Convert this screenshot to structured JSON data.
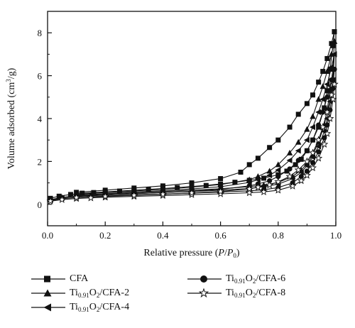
{
  "chart_data": {
    "type": "line",
    "xlabel": "Relative pressure (P/P0)",
    "ylabel": "Volume adsorbed (cm3/g)",
    "xlim": [
      0.0,
      1.0
    ],
    "ylim": [
      -1,
      9
    ],
    "xticks": [
      "0.0",
      "0.2",
      "0.4",
      "0.6",
      "0.8",
      "1.0"
    ],
    "yticks": [
      "0",
      "2",
      "4",
      "6",
      "8"
    ],
    "grid": false,
    "legend_position": "bottom",
    "series": [
      {
        "name": "CFA",
        "marker": "square",
        "adsorption": [
          [
            0.01,
            0.28
          ],
          [
            0.04,
            0.38
          ],
          [
            0.08,
            0.46
          ],
          [
            0.12,
            0.52
          ],
          [
            0.16,
            0.55
          ],
          [
            0.2,
            0.58
          ],
          [
            0.25,
            0.62
          ],
          [
            0.3,
            0.66
          ],
          [
            0.35,
            0.7
          ],
          [
            0.4,
            0.74
          ],
          [
            0.45,
            0.78
          ],
          [
            0.5,
            0.83
          ],
          [
            0.55,
            0.88
          ],
          [
            0.6,
            0.95
          ],
          [
            0.65,
            1.03
          ],
          [
            0.7,
            1.12
          ],
          [
            0.75,
            1.22
          ],
          [
            0.8,
            1.38
          ],
          [
            0.83,
            1.55
          ],
          [
            0.86,
            1.85
          ],
          [
            0.88,
            2.1
          ],
          [
            0.9,
            2.5
          ],
          [
            0.92,
            3.0
          ],
          [
            0.94,
            3.6
          ],
          [
            0.96,
            4.5
          ],
          [
            0.97,
            5.3
          ],
          [
            0.98,
            6.3
          ],
          [
            0.99,
            7.4
          ],
          [
            0.995,
            8.05
          ]
        ],
        "desorption": [
          [
            0.995,
            8.05
          ],
          [
            0.985,
            7.5
          ],
          [
            0.97,
            6.8
          ],
          [
            0.955,
            6.2
          ],
          [
            0.94,
            5.7
          ],
          [
            0.92,
            5.1
          ],
          [
            0.9,
            4.7
          ],
          [
            0.87,
            4.2
          ],
          [
            0.84,
            3.6
          ],
          [
            0.8,
            3.0
          ],
          [
            0.77,
            2.65
          ],
          [
            0.73,
            2.15
          ],
          [
            0.7,
            1.85
          ],
          [
            0.67,
            1.5
          ],
          [
            0.6,
            1.2
          ],
          [
            0.5,
            1.0
          ],
          [
            0.4,
            0.86
          ],
          [
            0.3,
            0.76
          ],
          [
            0.2,
            0.66
          ],
          [
            0.1,
            0.56
          ]
        ]
      },
      {
        "name": "Ti0.91O2/CFA-2",
        "marker": "triangle-up",
        "adsorption": [
          [
            0.01,
            0.22
          ],
          [
            0.05,
            0.32
          ],
          [
            0.1,
            0.4
          ],
          [
            0.15,
            0.44
          ],
          [
            0.2,
            0.48
          ],
          [
            0.3,
            0.54
          ],
          [
            0.4,
            0.6
          ],
          [
            0.5,
            0.66
          ],
          [
            0.6,
            0.73
          ],
          [
            0.7,
            0.82
          ],
          [
            0.75,
            0.9
          ],
          [
            0.8,
            1.02
          ],
          [
            0.85,
            1.3
          ],
          [
            0.88,
            1.6
          ],
          [
            0.9,
            1.9
          ],
          [
            0.92,
            2.3
          ],
          [
            0.94,
            2.9
          ],
          [
            0.96,
            3.7
          ],
          [
            0.97,
            4.4
          ],
          [
            0.98,
            5.3
          ],
          [
            0.99,
            6.3
          ],
          [
            0.995,
            7.6
          ]
        ],
        "desorption": [
          [
            0.995,
            7.6
          ],
          [
            0.985,
            7.0
          ],
          [
            0.97,
            6.2
          ],
          [
            0.955,
            5.5
          ],
          [
            0.94,
            4.9
          ],
          [
            0.92,
            4.1
          ],
          [
            0.9,
            3.5
          ],
          [
            0.87,
            2.9
          ],
          [
            0.84,
            2.4
          ],
          [
            0.8,
            1.85
          ],
          [
            0.77,
            1.55
          ],
          [
            0.73,
            1.3
          ],
          [
            0.7,
            1.15
          ],
          [
            0.6,
            0.92
          ],
          [
            0.5,
            0.8
          ],
          [
            0.4,
            0.7
          ],
          [
            0.3,
            0.62
          ],
          [
            0.2,
            0.55
          ],
          [
            0.1,
            0.47
          ]
        ]
      },
      {
        "name": "Ti0.91O2/CFA-4",
        "marker": "triangle-left",
        "adsorption": [
          [
            0.01,
            0.2
          ],
          [
            0.05,
            0.3
          ],
          [
            0.1,
            0.37
          ],
          [
            0.15,
            0.41
          ],
          [
            0.2,
            0.44
          ],
          [
            0.3,
            0.5
          ],
          [
            0.4,
            0.55
          ],
          [
            0.5,
            0.6
          ],
          [
            0.6,
            0.66
          ],
          [
            0.7,
            0.74
          ],
          [
            0.75,
            0.82
          ],
          [
            0.8,
            0.94
          ],
          [
            0.85,
            1.2
          ],
          [
            0.88,
            1.5
          ],
          [
            0.9,
            1.8
          ],
          [
            0.92,
            2.2
          ],
          [
            0.94,
            2.7
          ],
          [
            0.96,
            3.4
          ],
          [
            0.97,
            4.0
          ],
          [
            0.98,
            4.8
          ],
          [
            0.99,
            5.8
          ],
          [
            0.995,
            7.0
          ]
        ],
        "desorption": [
          [
            0.995,
            7.0
          ],
          [
            0.985,
            6.4
          ],
          [
            0.97,
            5.6
          ],
          [
            0.955,
            4.9
          ],
          [
            0.94,
            4.3
          ],
          [
            0.92,
            3.6
          ],
          [
            0.9,
            3.0
          ],
          [
            0.87,
            2.5
          ],
          [
            0.84,
            2.05
          ],
          [
            0.8,
            1.6
          ],
          [
            0.77,
            1.35
          ],
          [
            0.73,
            1.15
          ],
          [
            0.7,
            1.02
          ],
          [
            0.6,
            0.82
          ],
          [
            0.5,
            0.72
          ],
          [
            0.4,
            0.64
          ],
          [
            0.3,
            0.57
          ],
          [
            0.2,
            0.5
          ],
          [
            0.1,
            0.43
          ]
        ]
      },
      {
        "name": "Ti0.91O2/CFA-6",
        "marker": "circle",
        "adsorption": [
          [
            0.01,
            0.18
          ],
          [
            0.05,
            0.26
          ],
          [
            0.1,
            0.32
          ],
          [
            0.15,
            0.36
          ],
          [
            0.2,
            0.39
          ],
          [
            0.3,
            0.44
          ],
          [
            0.4,
            0.48
          ],
          [
            0.5,
            0.52
          ],
          [
            0.6,
            0.57
          ],
          [
            0.7,
            0.63
          ],
          [
            0.75,
            0.68
          ],
          [
            0.8,
            0.78
          ],
          [
            0.85,
            1.0
          ],
          [
            0.88,
            1.3
          ],
          [
            0.9,
            1.55
          ],
          [
            0.92,
            1.95
          ],
          [
            0.94,
            2.45
          ],
          [
            0.96,
            3.1
          ],
          [
            0.97,
            3.7
          ],
          [
            0.98,
            4.4
          ],
          [
            0.99,
            5.4
          ],
          [
            0.995,
            6.3
          ]
        ],
        "desorption": [
          [
            0.995,
            6.3
          ],
          [
            0.985,
            5.8
          ],
          [
            0.97,
            5.0
          ],
          [
            0.955,
            4.3
          ],
          [
            0.94,
            3.7
          ],
          [
            0.92,
            3.0
          ],
          [
            0.9,
            2.5
          ],
          [
            0.87,
            2.05
          ],
          [
            0.84,
            1.65
          ],
          [
            0.8,
            1.3
          ],
          [
            0.77,
            1.1
          ],
          [
            0.73,
            0.95
          ],
          [
            0.7,
            0.86
          ],
          [
            0.6,
            0.7
          ],
          [
            0.5,
            0.61
          ],
          [
            0.4,
            0.55
          ],
          [
            0.3,
            0.49
          ],
          [
            0.2,
            0.43
          ],
          [
            0.1,
            0.37
          ]
        ]
      },
      {
        "name": "Ti0.91O2/CFA-8",
        "marker": "star-open",
        "adsorption": [
          [
            0.01,
            0.15
          ],
          [
            0.05,
            0.22
          ],
          [
            0.1,
            0.27
          ],
          [
            0.15,
            0.3
          ],
          [
            0.2,
            0.33
          ],
          [
            0.3,
            0.37
          ],
          [
            0.4,
            0.41
          ],
          [
            0.5,
            0.45
          ],
          [
            0.6,
            0.49
          ],
          [
            0.7,
            0.54
          ],
          [
            0.75,
            0.58
          ],
          [
            0.8,
            0.66
          ],
          [
            0.85,
            0.85
          ],
          [
            0.88,
            1.1
          ],
          [
            0.9,
            1.35
          ],
          [
            0.92,
            1.7
          ],
          [
            0.94,
            2.15
          ],
          [
            0.96,
            2.8
          ],
          [
            0.97,
            3.3
          ],
          [
            0.98,
            4.0
          ],
          [
            0.99,
            4.9
          ],
          [
            0.995,
            5.6
          ]
        ],
        "desorption": [
          [
            0.995,
            5.6
          ],
          [
            0.985,
            5.1
          ],
          [
            0.97,
            4.3
          ],
          [
            0.955,
            3.6
          ],
          [
            0.94,
            3.0
          ],
          [
            0.92,
            2.4
          ],
          [
            0.9,
            2.0
          ],
          [
            0.87,
            1.6
          ],
          [
            0.84,
            1.3
          ],
          [
            0.8,
            1.05
          ],
          [
            0.77,
            0.9
          ],
          [
            0.73,
            0.8
          ],
          [
            0.7,
            0.72
          ],
          [
            0.6,
            0.6
          ],
          [
            0.5,
            0.53
          ],
          [
            0.4,
            0.47
          ],
          [
            0.3,
            0.42
          ],
          [
            0.2,
            0.37
          ],
          [
            0.1,
            0.32
          ]
        ]
      }
    ]
  }
}
